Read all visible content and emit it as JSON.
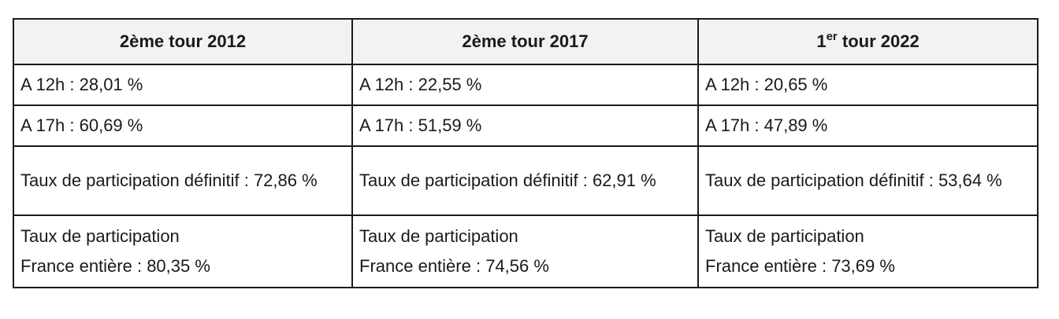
{
  "header": {
    "col1": "2ème tour 2012",
    "col2": "2ème tour 2017",
    "col3_ordinal": "1",
    "col3_sup": "er",
    "col3_rest": " tour 2022"
  },
  "rows": {
    "noon": [
      "A 12h : 28,01 %",
      "A 12h : 22,55 %",
      "A 12h : 20,65 %"
    ],
    "five_pm": [
      "A 17h : 60,69 %",
      "A 17h : 51,59 %",
      "A 17h : 47,89 %"
    ],
    "final": [
      "Taux de participation définitif : 72,86 %",
      "Taux de participation définitif : 62,91 %",
      "Taux de participation définitif : 53,64 %"
    ],
    "france_label": [
      "Taux de participation",
      "Taux de participation",
      "Taux de participation"
    ],
    "france_value": [
      "France entière : 80,35 %",
      "France entière : 74,56 %",
      "France entière : 73,69 %"
    ]
  }
}
